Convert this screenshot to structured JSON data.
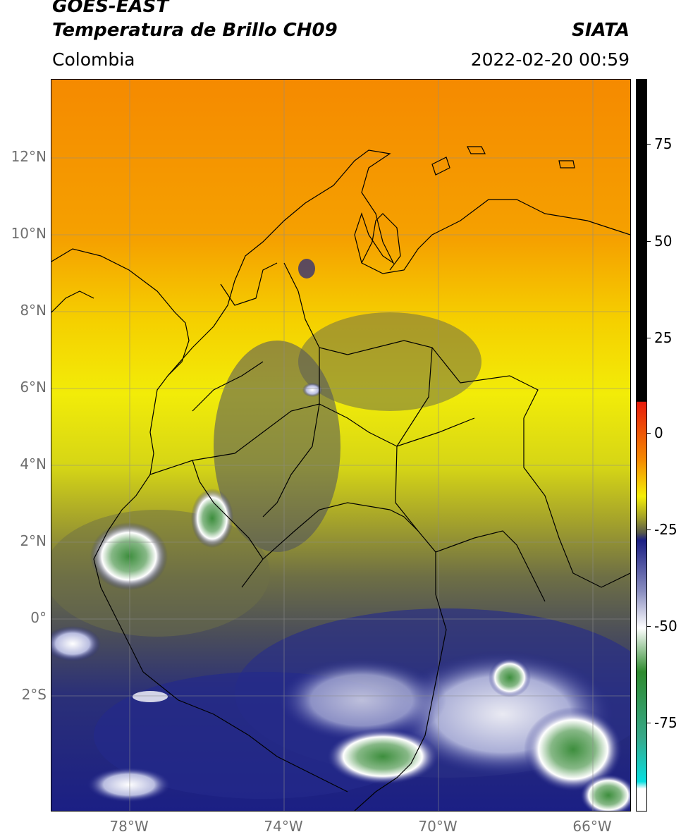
{
  "header": {
    "title_line1": "GOES-EAST",
    "title_line2": "Temperatura de Brillo CH09",
    "organization": "SIATA",
    "region": "Colombia",
    "timestamp": "2022-02-20 00:59"
  },
  "map": {
    "lat_labels": [
      "12°N",
      "10°N",
      "8°N",
      "6°N",
      "4°N",
      "2°N",
      "0°",
      "2°S"
    ],
    "lon_labels": [
      "78°W",
      "74°W",
      "70°W",
      "66°W"
    ]
  },
  "colorbar": {
    "labels": [
      "75",
      "50",
      "25",
      "0",
      "-25",
      "-50",
      "-75"
    ],
    "colors": {
      "black": "#000000",
      "red": "#e81b0c",
      "orange": "#f58a00",
      "yellow": "#f5ee05",
      "olive": "#9e9d2a",
      "gray": "#56584c",
      "navy": "#1b1f84",
      "white": "#ffffff",
      "green": "#2e8b2e",
      "cyan": "#06dfe0"
    }
  }
}
